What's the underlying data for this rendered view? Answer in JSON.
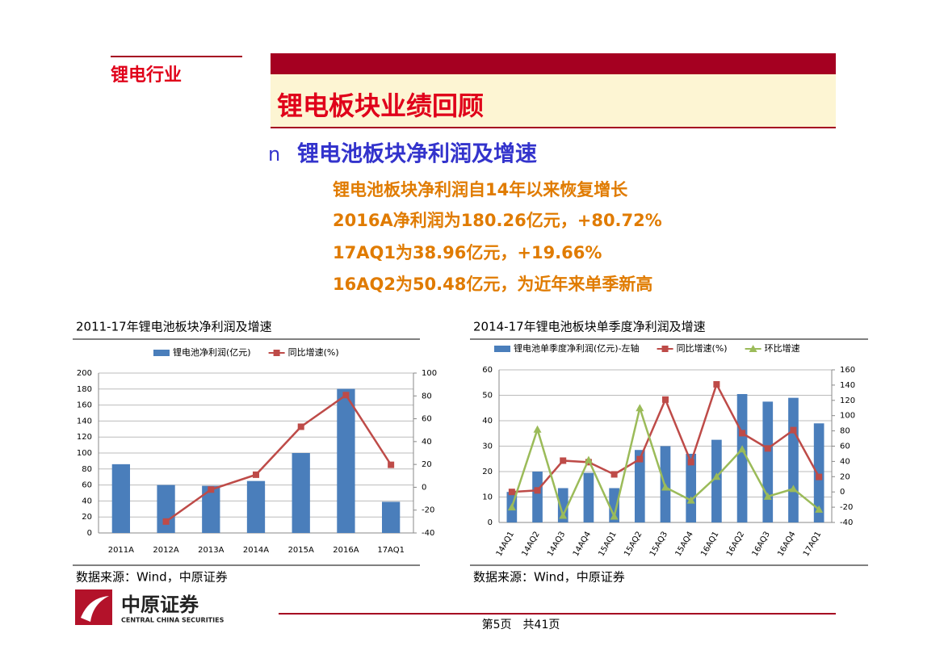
{
  "section": "锂电行业",
  "title": "锂电板块业绩回顾",
  "bullet": {
    "marker": "n",
    "text": "锂电池板块净利润及增速"
  },
  "points": [
    "锂电池板块净利润自14年以来恢复增长",
    "2016A净利润为180.26亿元，+80.72%",
    "17AQ1为38.96亿元，+19.66%",
    "16AQ2为50.48亿元，为近年来单季新高"
  ],
  "logo": {
    "name": "中原证券",
    "english": "CENTRAL CHINA SECURITIES"
  },
  "footer": "第5页　共41页",
  "chart_data": [
    {
      "type": "combo",
      "title": "2011-17年锂电池板块净利润及增速",
      "source": "数据来源：Wind，中原证券",
      "categories": [
        "2011A",
        "2012A",
        "2013A",
        "2014A",
        "2015A",
        "2016A",
        "17AQ1"
      ],
      "series": [
        {
          "name": "锂电池净利润(亿元)",
          "type": "bar",
          "color": "#4a7ebb",
          "values": [
            86,
            60,
            59,
            65,
            100,
            180.26,
            38.96
          ]
        },
        {
          "name": "同比增速(%)",
          "type": "line",
          "axis": "y2",
          "color": "#be4b48",
          "marker": "square",
          "values": [
            null,
            -30,
            -2,
            11,
            53,
            80.72,
            19.66
          ]
        }
      ],
      "ylim": [
        0,
        200
      ],
      "yticks": [
        0,
        20,
        40,
        60,
        80,
        100,
        120,
        140,
        160,
        180,
        200
      ],
      "y2lim": [
        -40,
        100
      ],
      "y2ticks": [
        -40,
        -20,
        0,
        20,
        40,
        60,
        80,
        100
      ],
      "grid": true
    },
    {
      "type": "combo",
      "title": "2014-17年锂电池板块单季度净利润及增速",
      "source": "数据来源：Wind，中原证券",
      "categories": [
        "14AQ1",
        "14AQ2",
        "14AQ3",
        "14AQ4",
        "15AQ1",
        "15AQ2",
        "15AQ3",
        "15AQ4",
        "16AQ1",
        "16AQ2",
        "16AQ3",
        "16AQ4",
        "17AQ1"
      ],
      "series": [
        {
          "name": "锂电池单季度净利润(亿元)-左轴",
          "type": "bar",
          "color": "#4a7ebb",
          "values": [
            12,
            20,
            13.5,
            19.5,
            13.5,
            28.5,
            30,
            27,
            32.5,
            50.48,
            47.5,
            49,
            38.96
          ]
        },
        {
          "name": "同比增速(%)",
          "type": "line",
          "axis": "y2",
          "color": "#be4b48",
          "marker": "square",
          "values": [
            0,
            2,
            41,
            39,
            23,
            43,
            121,
            39,
            141,
            77,
            57,
            81,
            19.66
          ]
        },
        {
          "name": "环比增速",
          "type": "line",
          "axis": "y2",
          "color": "#9bbb59",
          "marker": "triangle",
          "values": [
            -20,
            82,
            -31,
            42,
            -32,
            110,
            6,
            -11,
            20,
            56,
            -6,
            4,
            -23
          ]
        }
      ],
      "ylim": [
        0,
        60
      ],
      "yticks": [
        0,
        10,
        20,
        30,
        40,
        50,
        60
      ],
      "y2lim": [
        -40,
        160
      ],
      "y2ticks": [
        -40,
        -20,
        0,
        20,
        40,
        60,
        80,
        100,
        120,
        140,
        160
      ],
      "grid": true
    }
  ]
}
